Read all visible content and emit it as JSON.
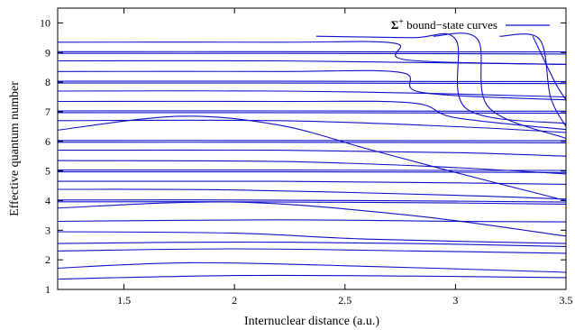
{
  "chart_data": {
    "type": "line",
    "title": "",
    "xlabel": "Internuclear distance (a.u.)",
    "ylabel": "Effective quantum number",
    "xlim": [
      1.2,
      3.5
    ],
    "ylim": [
      1,
      10.5
    ],
    "xticks": [
      1.5,
      2,
      2.5,
      3,
      3.5
    ],
    "xtick_labels": [
      "1.5",
      "2",
      "2.5",
      "3",
      "3.5"
    ],
    "yticks": [
      1,
      2,
      3,
      4,
      5,
      6,
      7,
      8,
      9,
      10
    ],
    "ytick_labels": [
      "1",
      "2",
      "3",
      "4",
      "5",
      "6",
      "7",
      "8",
      "9",
      "10"
    ],
    "grid": false,
    "legend_position": "top-right",
    "legend": {
      "symbol": "Σ",
      "superscript": "+",
      "text": " bound−state curves"
    },
    "line_color": "#1010c8",
    "series": [
      {
        "x": [
          1.2,
          2.0,
          2.8,
          3.5
        ],
        "y": [
          1.35,
          1.47,
          1.45,
          1.4
        ]
      },
      {
        "x": [
          1.2,
          1.8,
          2.6,
          3.5
        ],
        "y": [
          1.72,
          1.9,
          1.78,
          1.58
        ]
      },
      {
        "x": [
          1.2,
          2.0,
          2.8,
          3.5
        ],
        "y": [
          2.3,
          2.37,
          2.3,
          2.22
        ]
      },
      {
        "x": [
          1.2,
          2.0,
          2.8,
          3.5
        ],
        "y": [
          2.55,
          2.6,
          2.55,
          2.45
        ]
      },
      {
        "x": [
          1.2,
          2.0,
          2.6,
          3.5
        ],
        "y": [
          2.95,
          2.9,
          2.7,
          2.55
        ]
      },
      {
        "x": [
          1.2,
          2.2,
          3.0,
          3.5
        ],
        "y": [
          3.3,
          3.35,
          3.3,
          3.28
        ]
      },
      {
        "x": [
          1.2,
          2.0,
          2.8,
          3.5
        ],
        "y": [
          3.75,
          3.95,
          3.5,
          2.8
        ]
      },
      {
        "x": [
          1.2,
          2.0,
          3.0,
          3.5
        ],
        "y": [
          3.96,
          3.96,
          3.92,
          3.88
        ]
      },
      {
        "x": [
          1.2,
          2.0,
          3.0,
          3.5
        ],
        "y": [
          4.02,
          4.02,
          3.98,
          3.95
        ]
      },
      {
        "x": [
          1.2,
          2.0,
          3.0,
          3.5
        ],
        "y": [
          4.38,
          4.36,
          4.18,
          4.05
        ]
      },
      {
        "x": [
          1.2,
          2.2,
          3.0,
          3.5
        ],
        "y": [
          4.65,
          4.65,
          4.6,
          4.55
        ]
      },
      {
        "x": [
          1.2,
          2.2,
          3.0,
          3.5
        ],
        "y": [
          4.97,
          4.97,
          4.96,
          4.95
        ]
      },
      {
        "x": [
          1.2,
          2.2,
          3.0,
          3.5
        ],
        "y": [
          5.03,
          5.03,
          5.02,
          5.02
        ]
      },
      {
        "x": [
          1.2,
          2.2,
          2.9,
          3.5
        ],
        "y": [
          5.35,
          5.32,
          5.15,
          4.9
        ]
      },
      {
        "x": [
          1.2,
          2.2,
          3.0,
          3.5
        ],
        "y": [
          5.7,
          5.7,
          5.62,
          5.5
        ]
      },
      {
        "x": [
          1.2,
          2.2,
          3.0,
          3.5
        ],
        "y": [
          5.97,
          5.97,
          5.96,
          5.95
        ]
      },
      {
        "x": [
          1.2,
          2.2,
          3.0,
          3.5
        ],
        "y": [
          6.03,
          6.03,
          6.02,
          6.02
        ]
      },
      {
        "x": [
          1.2,
          1.75,
          2.2,
          2.6,
          3.0,
          3.5
        ],
        "y": [
          6.38,
          6.85,
          6.55,
          5.75,
          4.95,
          4.0
        ]
      },
      {
        "x": [
          1.2,
          2.2,
          3.0,
          3.5
        ],
        "y": [
          6.7,
          6.7,
          6.5,
          6.3
        ]
      },
      {
        "x": [
          1.2,
          2.2,
          3.0,
          3.5
        ],
        "y": [
          6.97,
          6.97,
          6.96,
          6.95
        ]
      },
      {
        "x": [
          1.2,
          2.2,
          3.0,
          3.5
        ],
        "y": [
          7.03,
          7.03,
          7.02,
          7.02
        ]
      },
      {
        "x": [
          1.2,
          2.2,
          2.8,
          3.0,
          3.5
        ],
        "y": [
          7.35,
          7.35,
          7.3,
          6.8,
          6.4
        ]
      },
      {
        "x": [
          1.2,
          2.2,
          3.0,
          3.5
        ],
        "y": [
          7.7,
          7.7,
          7.6,
          7.5
        ]
      },
      {
        "x": [
          1.2,
          2.2,
          3.0,
          3.5
        ],
        "y": [
          7.97,
          7.97,
          7.96,
          7.95
        ]
      },
      {
        "x": [
          1.2,
          2.2,
          3.0,
          3.5
        ],
        "y": [
          8.03,
          8.03,
          8.02,
          8.02
        ]
      },
      {
        "x": [
          1.2,
          2.2,
          2.75,
          2.85,
          3.5
        ],
        "y": [
          8.36,
          8.36,
          8.33,
          7.65,
          7.4
        ]
      },
      {
        "x": [
          1.2,
          2.2,
          3.0,
          3.5
        ],
        "y": [
          8.72,
          8.72,
          8.65,
          8.6
        ]
      },
      {
        "x": [
          1.2,
          2.2,
          3.0,
          3.5
        ],
        "y": [
          8.97,
          8.97,
          8.96,
          8.95
        ]
      },
      {
        "x": [
          1.2,
          2.2,
          3.0,
          3.5
        ],
        "y": [
          9.03,
          9.03,
          9.02,
          9.02
        ]
      },
      {
        "x": [
          1.2,
          2.2,
          2.72,
          2.78,
          3.5
        ],
        "y": [
          9.35,
          9.35,
          9.32,
          8.75,
          8.6
        ]
      },
      {
        "x": [
          2.37,
          2.8,
          3.0,
          3.05,
          3.5
        ],
        "y": [
          9.55,
          9.5,
          9.45,
          7.1,
          6.6
        ]
      },
      {
        "x": [
          2.9,
          3.1,
          3.15,
          3.5
        ],
        "y": [
          9.55,
          9.45,
          7.15,
          6.1
        ]
      },
      {
        "x": [
          3.2,
          3.38,
          3.43,
          3.5
        ],
        "y": [
          9.55,
          9.45,
          7.5,
          6.5
        ]
      },
      {
        "x": [
          3.35,
          3.45,
          3.5
        ],
        "y": [
          9.55,
          8.0,
          7.4
        ]
      }
    ]
  }
}
